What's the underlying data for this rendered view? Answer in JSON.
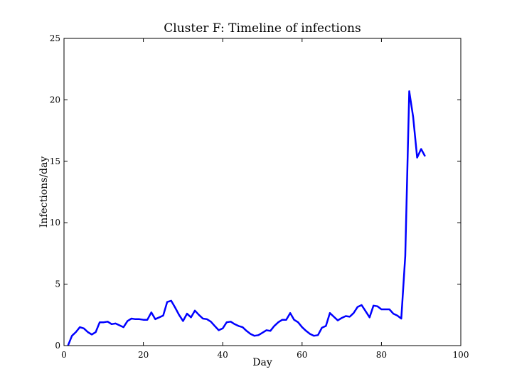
{
  "chart_data": {
    "type": "line",
    "title": "Cluster F: Timeline of infections",
    "xlabel": "Day",
    "ylabel": "Infections/day",
    "xlim": [
      0,
      100
    ],
    "ylim": [
      0,
      25
    ],
    "xticks": [
      0,
      20,
      40,
      60,
      80,
      100
    ],
    "yticks": [
      0,
      5,
      10,
      15,
      20,
      25
    ],
    "grid": false,
    "legend": "none",
    "line_color": "#0000ff",
    "series": [
      {
        "x": [
          1,
          2,
          3,
          4,
          5,
          6,
          7,
          8,
          9,
          10,
          11,
          12,
          13,
          14,
          15,
          16,
          17,
          18,
          19,
          20,
          21,
          22,
          23,
          24,
          25,
          26,
          27,
          28,
          29,
          30,
          31,
          32,
          33,
          34,
          35,
          36,
          37,
          38,
          39,
          40,
          41,
          42,
          43,
          44,
          45,
          46,
          47,
          48,
          49,
          50,
          51,
          52,
          53,
          54,
          55,
          56,
          57,
          58,
          59,
          60,
          61,
          62,
          63,
          64,
          65,
          66,
          67,
          68,
          69,
          70,
          71,
          72,
          73,
          74,
          75,
          76,
          77,
          78,
          79,
          80,
          81,
          82,
          83,
          84,
          85,
          86,
          87,
          88,
          89,
          90,
          91
        ],
        "y": [
          0.0,
          0.8,
          1.1,
          1.5,
          1.4,
          1.1,
          0.9,
          1.1,
          1.9,
          1.9,
          1.95,
          1.75,
          1.8,
          1.65,
          1.5,
          2.0,
          2.2,
          2.15,
          2.15,
          2.1,
          2.1,
          2.7,
          2.15,
          2.3,
          2.45,
          3.55,
          3.65,
          3.1,
          2.5,
          2.0,
          2.6,
          2.3,
          2.85,
          2.5,
          2.2,
          2.15,
          1.95,
          1.6,
          1.25,
          1.4,
          1.9,
          1.95,
          1.75,
          1.6,
          1.5,
          1.2,
          0.95,
          0.8,
          0.85,
          1.05,
          1.25,
          1.2,
          1.6,
          1.9,
          2.1,
          2.1,
          2.65,
          2.1,
          1.9,
          1.5,
          1.2,
          0.95,
          0.8,
          0.85,
          1.45,
          1.6,
          2.65,
          2.35,
          2.05,
          2.25,
          2.4,
          2.35,
          2.65,
          3.15,
          3.3,
          2.8,
          2.3,
          3.25,
          3.2,
          2.95,
          2.95,
          2.95,
          2.6,
          2.45,
          2.2,
          7.3,
          20.7,
          18.6,
          15.3,
          16.0,
          15.4
        ]
      }
    ]
  }
}
